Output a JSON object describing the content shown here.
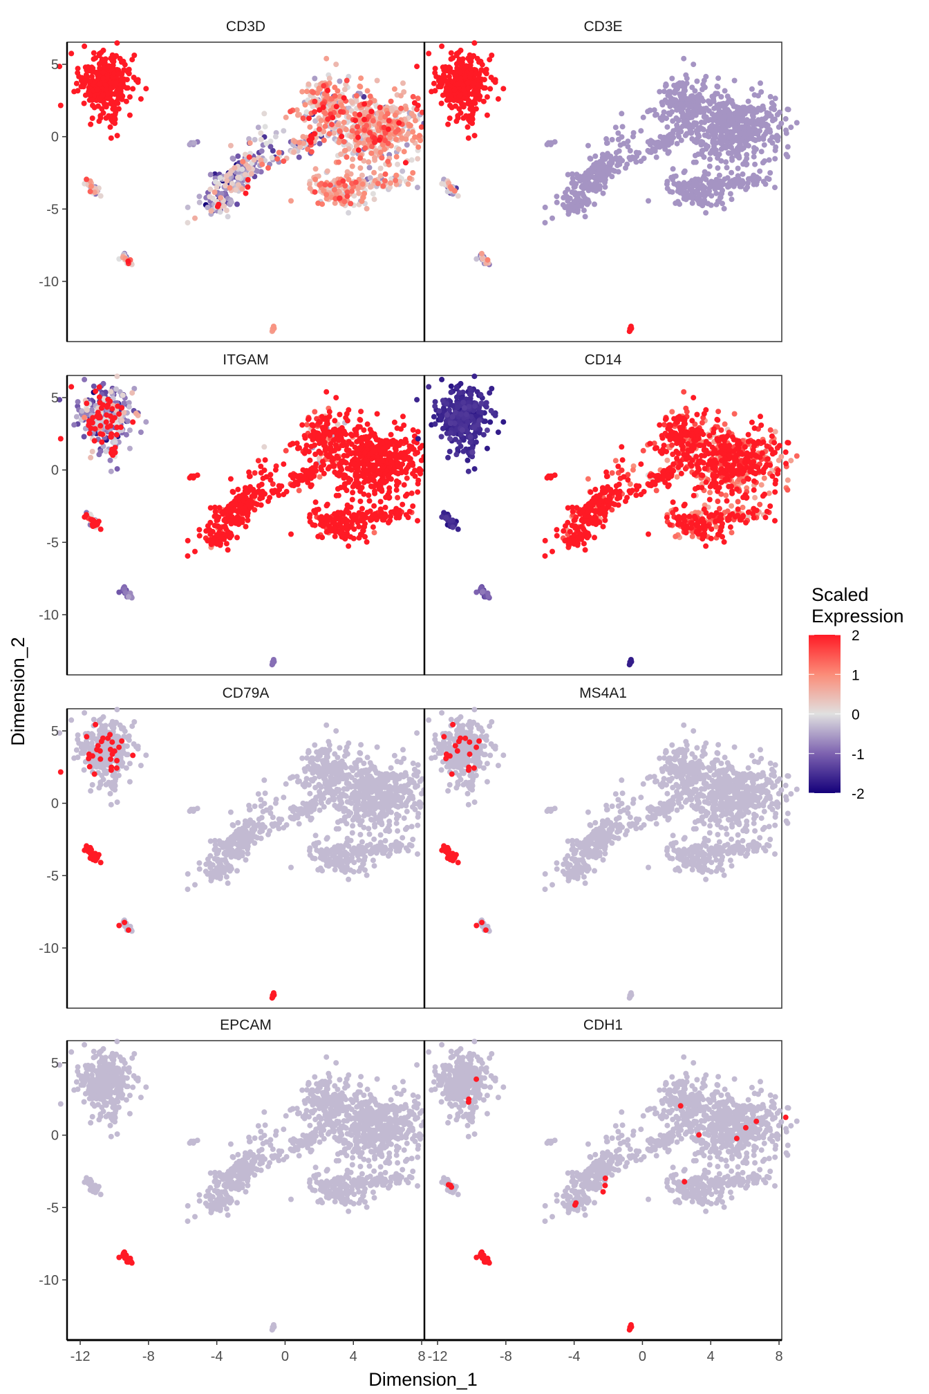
{
  "chart_data": {
    "type": "scatter",
    "xlabel": "Dimension_1",
    "ylabel": "Dimension_2",
    "xlim": [
      -12.77,
      8.16
    ],
    "ylim": [
      -14.16,
      6.53
    ],
    "x_ticks": [
      -12,
      -8,
      -4,
      0,
      4,
      8
    ],
    "y_ticks": [
      5,
      0,
      -5,
      -10
    ],
    "grid": false,
    "legend": {
      "title_line1": "Scaled",
      "title_line2": "Expression",
      "placement": "right",
      "range": [
        -2,
        2
      ],
      "ticks": [
        2,
        1,
        0,
        -1,
        -2
      ],
      "colors": {
        "-2": "#14007a",
        "-1": "#7d62b0",
        "0": "#e0e0e0",
        "1": "#fb8c78",
        "2": "#ff1a25"
      }
    },
    "clusters": [
      {
        "id": "t_cells",
        "center": [
          -10.6,
          3.7
        ],
        "spread": [
          0.75,
          1.0
        ],
        "angle": 0,
        "n": 320
      },
      {
        "id": "t_tail",
        "center": [
          -10.1,
          1.4
        ],
        "spread": [
          0.15,
          0.5
        ],
        "angle": 0,
        "n": 18
      },
      {
        "id": "b_cells",
        "center": [
          -11.3,
          -3.5
        ],
        "spread": [
          0.12,
          0.35
        ],
        "angle": 35,
        "n": 30
      },
      {
        "id": "epithelial",
        "center": [
          -9.3,
          -8.5
        ],
        "spread": [
          0.12,
          0.25
        ],
        "angle": 30,
        "n": 22
      },
      {
        "id": "single",
        "center": [
          -0.7,
          -13.3
        ],
        "spread": [
          0.05,
          0.08
        ],
        "angle": 0,
        "n": 5
      },
      {
        "id": "myeloid_lobe",
        "center": [
          2.2,
          2.4
        ],
        "spread": [
          0.85,
          0.95
        ],
        "angle": 0,
        "n": 150
      },
      {
        "id": "myeloid_main",
        "center": [
          5.3,
          0.6
        ],
        "spread": [
          1.5,
          1.25
        ],
        "angle": 0,
        "n": 480
      },
      {
        "id": "bridge",
        "center": [
          0.9,
          -0.6
        ],
        "spread": [
          1.2,
          0.3
        ],
        "angle": 30,
        "n": 70
      },
      {
        "id": "lower",
        "center": [
          3.2,
          -3.8
        ],
        "spread": [
          0.95,
          0.55
        ],
        "angle": 0,
        "n": 120
      },
      {
        "id": "lower_tail",
        "center": [
          5.8,
          -3.2
        ],
        "spread": [
          0.7,
          0.3
        ],
        "angle": 0,
        "n": 40
      },
      {
        "id": "streak",
        "center": [
          -2.8,
          -2.8
        ],
        "spread": [
          1.6,
          0.55
        ],
        "angle": 55,
        "n": 210
      },
      {
        "id": "small",
        "center": [
          -5.4,
          -0.5
        ],
        "spread": [
          0.2,
          0.08
        ],
        "angle": 0,
        "n": 8
      }
    ],
    "panels": [
      {
        "title": "CD3D",
        "base": -0.6,
        "expr": {
          "t_cells": [
            2,
            0,
            1
          ],
          "t_tail": [
            2,
            0,
            1
          ],
          "b_cells": [
            0.2,
            0.8,
            0
          ],
          "epithelial": [
            0.3,
            0.8,
            0
          ],
          "single": [
            0.8,
            0.2,
            0
          ],
          "myeloid_lobe": [
            0.4,
            0.7,
            0.03
          ],
          "myeloid_main": [
            0.6,
            0.6,
            0.03
          ],
          "bridge": [
            -0.4,
            0.8,
            0.05
          ],
          "lower": [
            0.6,
            0.5,
            0
          ],
          "lower_tail": [
            0.2,
            0.8,
            0
          ],
          "streak": [
            -0.5,
            0.7,
            0.03
          ],
          "small": [
            -0.6,
            0.1,
            0
          ]
        }
      },
      {
        "title": "CD3E",
        "base": -0.6,
        "expr": {
          "t_cells": [
            2,
            0,
            1
          ],
          "t_tail": [
            2,
            0,
            1
          ],
          "b_cells": [
            -0.3,
            0.6,
            0
          ],
          "epithelial": [
            -0.2,
            0.6,
            0
          ],
          "single": [
            2,
            0,
            1
          ]
        }
      },
      {
        "title": "ITGAM",
        "base": -0.6,
        "expr": {
          "t_cells": [
            -0.7,
            0.6,
            0.15
          ],
          "t_tail": [
            -0.5,
            0.5,
            0.2
          ],
          "b_cells": [
            0.3,
            1.0,
            0.3
          ],
          "epithelial": [
            -0.9,
            0.2,
            0
          ],
          "single": [
            -0.9,
            0,
            0
          ],
          "myeloid_lobe": [
            1.2,
            0.8,
            0.5
          ],
          "myeloid_main": [
            2,
            0.2,
            0.9
          ],
          "bridge": [
            1.8,
            0.4,
            0.8
          ],
          "lower": [
            1.9,
            0.3,
            0.8
          ],
          "lower_tail": [
            1.8,
            0.4,
            0.7
          ],
          "streak": [
            1.8,
            0.5,
            0.8
          ],
          "small": [
            2,
            0,
            1
          ]
        }
      },
      {
        "title": "CD14",
        "base": -0.6,
        "expr": {
          "t_cells": [
            -1.6,
            0.1,
            0
          ],
          "t_tail": [
            -1.6,
            0.1,
            0
          ],
          "b_cells": [
            -1.6,
            0.1,
            0
          ],
          "epithelial": [
            -1.2,
            0.2,
            0
          ],
          "single": [
            -1.7,
            0,
            0
          ],
          "myeloid_lobe": [
            1.6,
            0.4,
            0.6
          ],
          "myeloid_main": [
            1.3,
            0.5,
            0.4
          ],
          "bridge": [
            1.4,
            0.8,
            0.5
          ],
          "lower": [
            1.5,
            0.5,
            0.5
          ],
          "lower_tail": [
            1.3,
            0.5,
            0.3
          ],
          "streak": [
            1.7,
            0.5,
            0.7
          ],
          "small": [
            2,
            0,
            1
          ]
        }
      },
      {
        "title": "CD79A",
        "base": -0.3,
        "expr": {
          "t_cells": [
            -0.3,
            0,
            0.08
          ],
          "b_cells": [
            2,
            0,
            1
          ],
          "epithelial": [
            -0.3,
            0,
            0.1
          ],
          "single": [
            2,
            0,
            1
          ]
        }
      },
      {
        "title": "MS4A1",
        "base": -0.3,
        "expr": {
          "t_cells": [
            -0.3,
            0,
            0.05
          ],
          "b_cells": [
            2,
            0,
            1
          ],
          "epithelial": [
            -0.3,
            0,
            0.1
          ]
        }
      },
      {
        "title": "EPCAM",
        "base": -0.3,
        "expr": {
          "epithelial": [
            2,
            0,
            1
          ]
        }
      },
      {
        "title": "CDH1",
        "base": -0.3,
        "expr": {
          "t_cells": [
            -0.3,
            0,
            0.01
          ],
          "b_cells": [
            -0.3,
            0,
            0.05
          ],
          "epithelial": [
            2,
            0,
            1
          ],
          "single": [
            2,
            0,
            1
          ],
          "myeloid_main": [
            -0.3,
            0,
            0.015
          ],
          "myeloid_lobe": [
            -0.3,
            0,
            0.01
          ],
          "streak": [
            -0.3,
            0,
            0.03
          ],
          "lower": [
            -0.3,
            0,
            0.01
          ]
        }
      }
    ]
  }
}
